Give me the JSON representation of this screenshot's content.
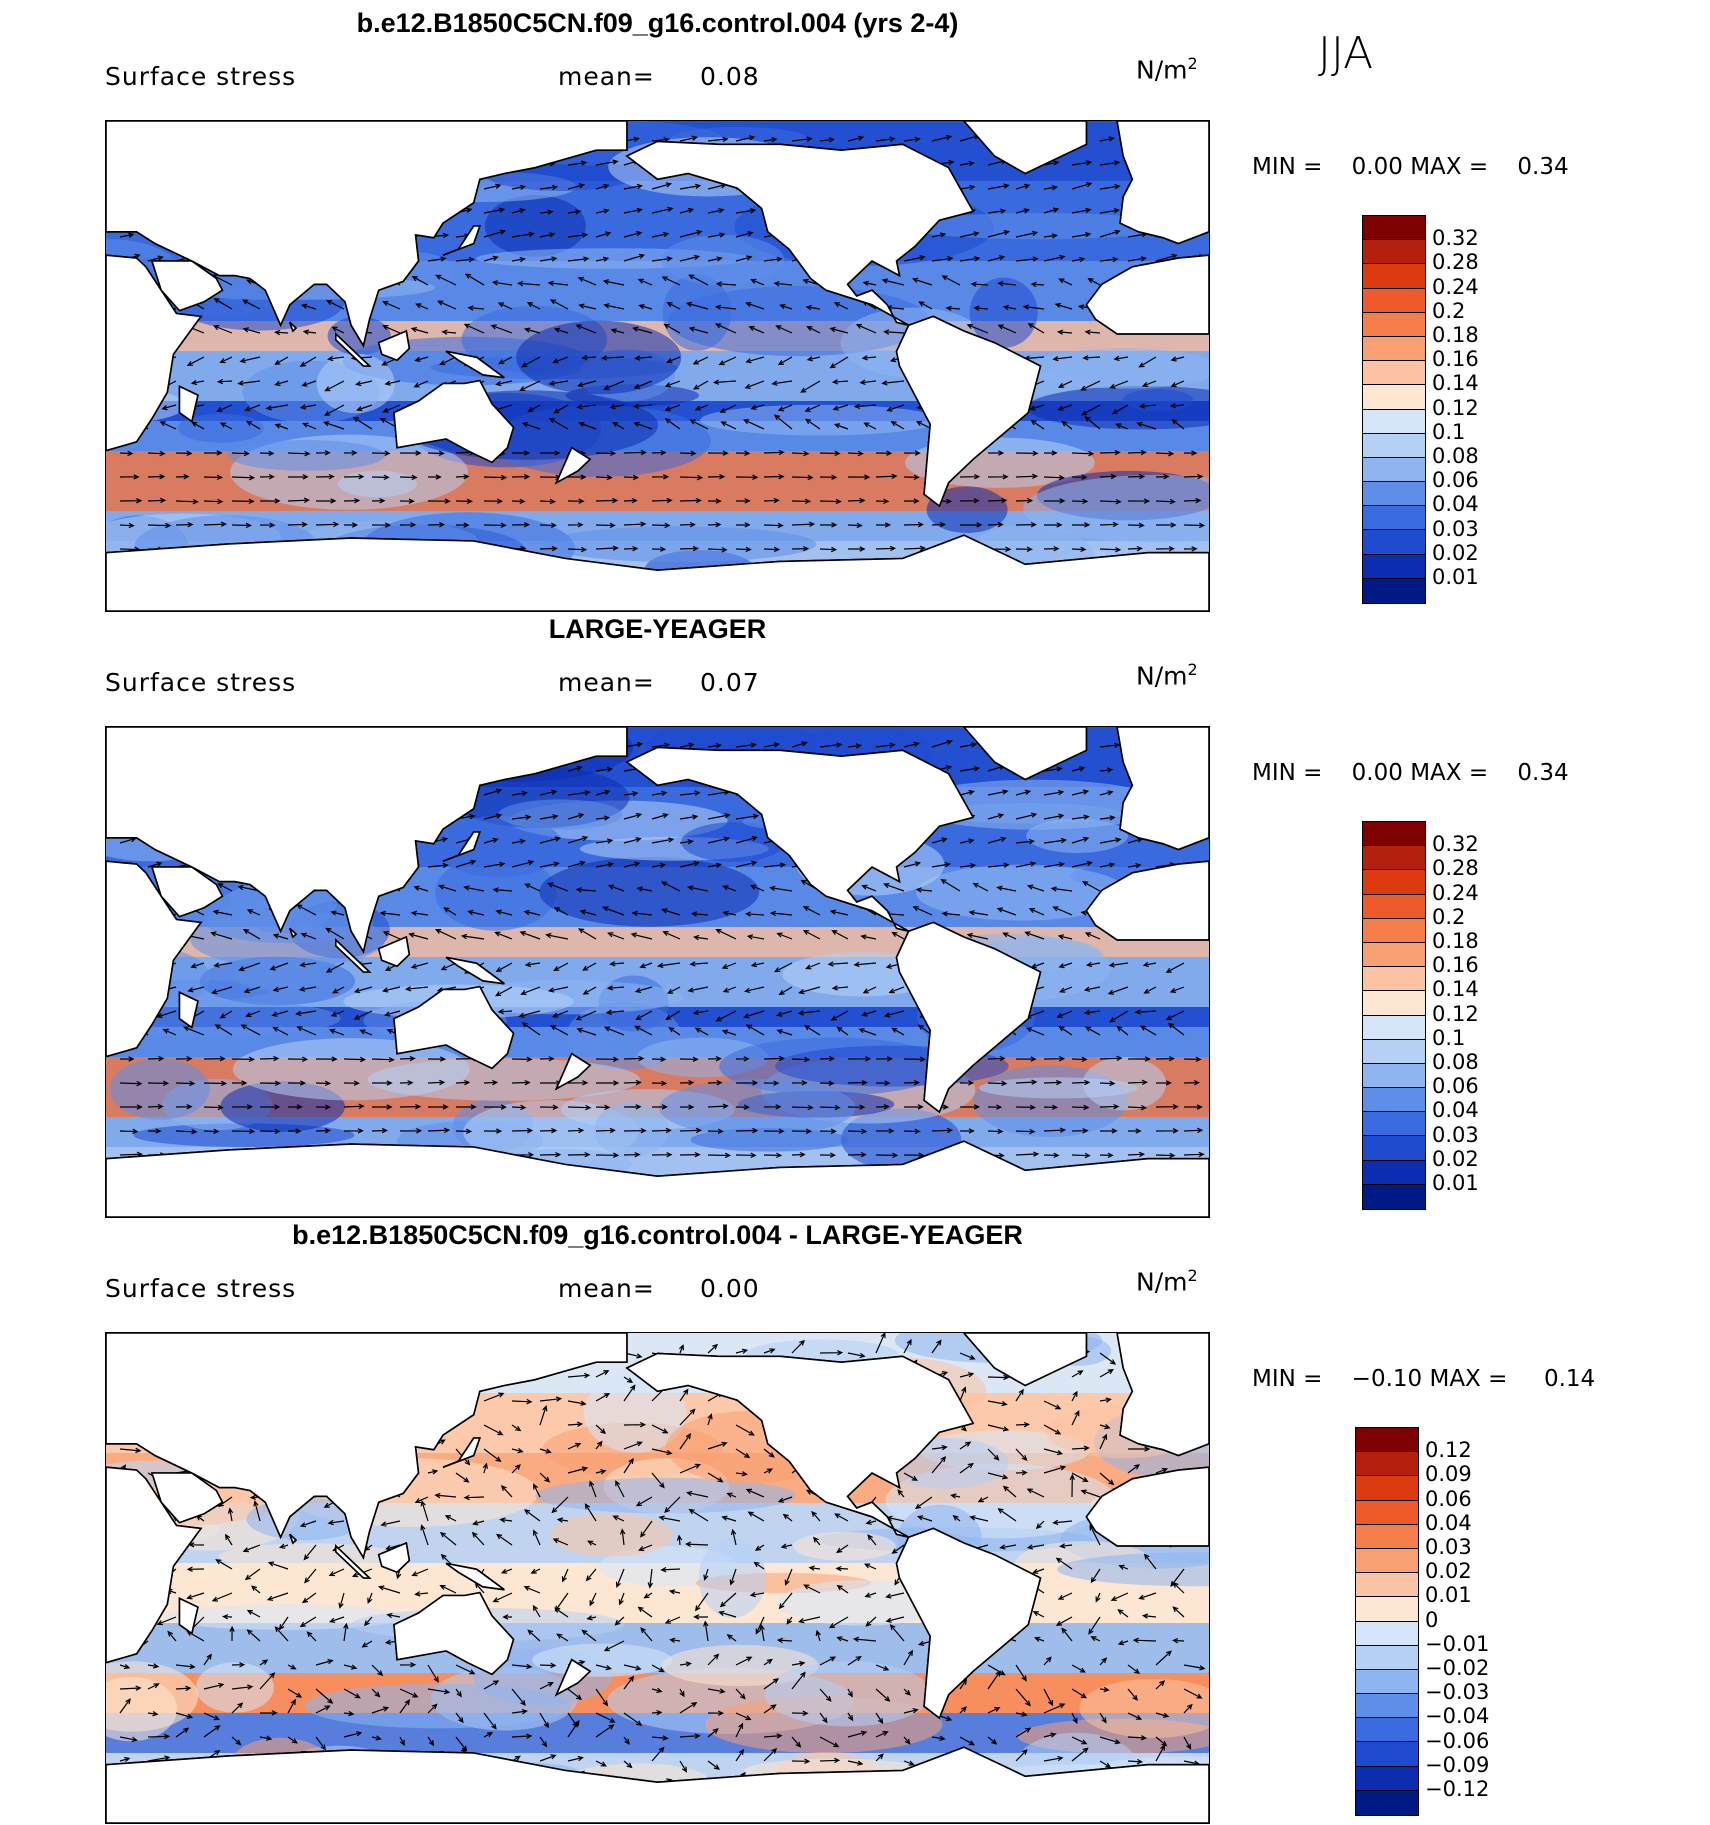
{
  "season": "JJA",
  "panels": [
    {
      "title": "b.e12.B1850C5CN.f09_g16.control.004 (yrs 2-4)",
      "field": "Surface stress",
      "mean_label": "mean=",
      "mean_value": "0.08",
      "units": "N/m",
      "units_exp": "2",
      "min_label": "MIN =",
      "min_value": "0.00",
      "max_label": "MAX =",
      "max_value": "0.34",
      "colorbar_labels": [
        "0.32",
        "0.28",
        "0.24",
        "0.2",
        "0.18",
        "0.16",
        "0.14",
        "0.12",
        "0.1",
        "0.08",
        "0.06",
        "0.04",
        "0.03",
        "0.02",
        "0.01"
      ],
      "colorbar_colors": [
        "#7f0000",
        "#b3200b",
        "#dc3a10",
        "#ee5a2a",
        "#f57e4a",
        "#f9a073",
        "#fbc3a3",
        "#fde6d2",
        "#d5e6fa",
        "#b5d0f5",
        "#8eb5f0",
        "#5f8ee8",
        "#3a6bdf",
        "#1f4bcf",
        "#0c2db0",
        "#001a85"
      ]
    },
    {
      "title": "LARGE-YEAGER",
      "field": "Surface stress",
      "mean_label": "mean=",
      "mean_value": "0.07",
      "units": "N/m",
      "units_exp": "2",
      "min_label": "MIN =",
      "min_value": "0.00",
      "max_label": "MAX =",
      "max_value": "0.34",
      "colorbar_labels": [
        "0.32",
        "0.28",
        "0.24",
        "0.2",
        "0.18",
        "0.16",
        "0.14",
        "0.12",
        "0.1",
        "0.08",
        "0.06",
        "0.04",
        "0.03",
        "0.02",
        "0.01"
      ],
      "colorbar_colors": [
        "#7f0000",
        "#b3200b",
        "#dc3a10",
        "#ee5a2a",
        "#f57e4a",
        "#f9a073",
        "#fbc3a3",
        "#fde6d2",
        "#d5e6fa",
        "#b5d0f5",
        "#8eb5f0",
        "#5f8ee8",
        "#3a6bdf",
        "#1f4bcf",
        "#0c2db0",
        "#001a85"
      ]
    },
    {
      "title": "b.e12.B1850C5CN.f09_g16.control.004 - LARGE-YEAGER",
      "field": "Surface stress",
      "mean_label": "mean=",
      "mean_value": "0.00",
      "units": "N/m",
      "units_exp": "2",
      "min_label": "MIN =",
      "min_value": "−0.10",
      "max_label": "MAX =",
      "max_value": "0.14",
      "colorbar_labels": [
        "0.12",
        "0.09",
        "0.06",
        "0.04",
        "0.03",
        "0.02",
        "0.01",
        "0",
        "−0.01",
        "−0.02",
        "−0.03",
        "−0.04",
        "−0.06",
        "−0.09",
        "−0.12"
      ],
      "colorbar_colors": [
        "#7f0000",
        "#b3200b",
        "#dc3a10",
        "#ee5a2a",
        "#f57e4a",
        "#f9a073",
        "#fbc3a3",
        "#fde6d2",
        "#d5e6fa",
        "#b5d0f5",
        "#8eb5f0",
        "#5f8ee8",
        "#3a6bdf",
        "#1f4bcf",
        "#0c2db0",
        "#001a85"
      ]
    }
  ]
}
